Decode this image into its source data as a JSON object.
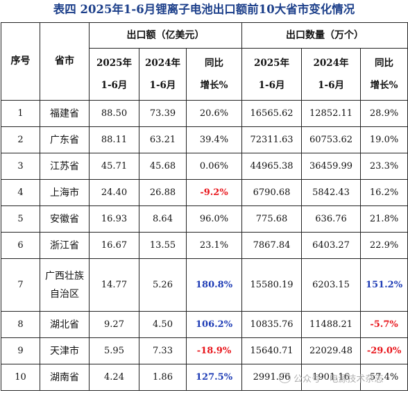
{
  "title": "表四 2025年1-6月锂离子电池出口额前10大省市变化情况",
  "headers": {
    "index": "序号",
    "province": "省市",
    "export_value_group": "出口额（亿美元）",
    "export_qty_group": "出口数量（万个）",
    "col_2025": [
      "2025年",
      "1-6月"
    ],
    "col_2024": [
      "2024年",
      "1-6月"
    ],
    "col_yoy": [
      "同比",
      "增长%"
    ]
  },
  "rows": [
    {
      "idx": "1",
      "prov": [
        "福建省"
      ],
      "v25": "88.50",
      "v24": "73.39",
      "vyoy": "20.6%",
      "vyoy_style": "plain",
      "q25": "16565.62",
      "q24": "12852.11",
      "qyoy": "28.9%",
      "qyoy_style": "plain"
    },
    {
      "idx": "2",
      "prov": [
        "广东省"
      ],
      "v25": "88.11",
      "v24": "63.21",
      "vyoy": "39.4%",
      "vyoy_style": "plain",
      "q25": "72311.63",
      "q24": "60753.62",
      "qyoy": "19.0%",
      "qyoy_style": "plain"
    },
    {
      "idx": "3",
      "prov": [
        "江苏省"
      ],
      "v25": "45.71",
      "v24": "45.68",
      "vyoy": "0.06%",
      "vyoy_style": "plain",
      "q25": "44965.38",
      "q24": "36459.99",
      "qyoy": "23.3%",
      "qyoy_style": "plain"
    },
    {
      "idx": "4",
      "prov": [
        "上海市"
      ],
      "v25": "24.40",
      "v24": "26.88",
      "vyoy": "-9.2%",
      "vyoy_style": "neg",
      "q25": "6790.68",
      "q24": "5842.43",
      "qyoy": "16.2%",
      "qyoy_style": "plain"
    },
    {
      "idx": "5",
      "prov": [
        "安徽省"
      ],
      "v25": "16.93",
      "v24": "8.64",
      "vyoy": "96.0%",
      "vyoy_style": "plain",
      "q25": "775.68",
      "q24": "636.76",
      "qyoy": "21.8%",
      "qyoy_style": "plain"
    },
    {
      "idx": "6",
      "prov": [
        "浙江省"
      ],
      "v25": "16.67",
      "v24": "13.55",
      "vyoy": "23.1%",
      "vyoy_style": "plain",
      "q25": "7867.84",
      "q24": "6403.27",
      "qyoy": "22.9%",
      "qyoy_style": "plain"
    },
    {
      "idx": "7",
      "prov": [
        "广西壮族",
        "自治区"
      ],
      "v25": "14.77",
      "v24": "5.26",
      "vyoy": "180.8%",
      "vyoy_style": "pos",
      "q25": "15580.19",
      "q24": "6203.15",
      "qyoy": "151.2%",
      "qyoy_style": "pos"
    },
    {
      "idx": "8",
      "prov": [
        "湖北省"
      ],
      "v25": "9.27",
      "v24": "4.50",
      "vyoy": "106.2%",
      "vyoy_style": "pos",
      "q25": "10835.76",
      "q24": "11488.21",
      "qyoy": "-5.7%",
      "qyoy_style": "neg"
    },
    {
      "idx": "9",
      "prov": [
        "天津市"
      ],
      "v25": "5.95",
      "v24": "7.33",
      "vyoy": "-18.9%",
      "vyoy_style": "neg",
      "q25": "15640.71",
      "q24": "22029.48",
      "qyoy": "-29.0%",
      "qyoy_style": "neg"
    },
    {
      "idx": "10",
      "prov": [
        "湖南省"
      ],
      "v25": "4.24",
      "v24": "1.86",
      "vyoy": "127.5%",
      "vyoy_style": "pos",
      "q25": "2991.96",
      "q24": "1901.16",
      "qyoy": "57.4%",
      "qyoy_style": "plain"
    }
  ],
  "colors": {
    "negative": "#e8141a",
    "positive_highlight": "#1d3bb5",
    "title": "#1c3f8a"
  },
  "watermark": {
    "icon": "wechat-icon",
    "text": "公众号 · 电源技术杂志"
  }
}
